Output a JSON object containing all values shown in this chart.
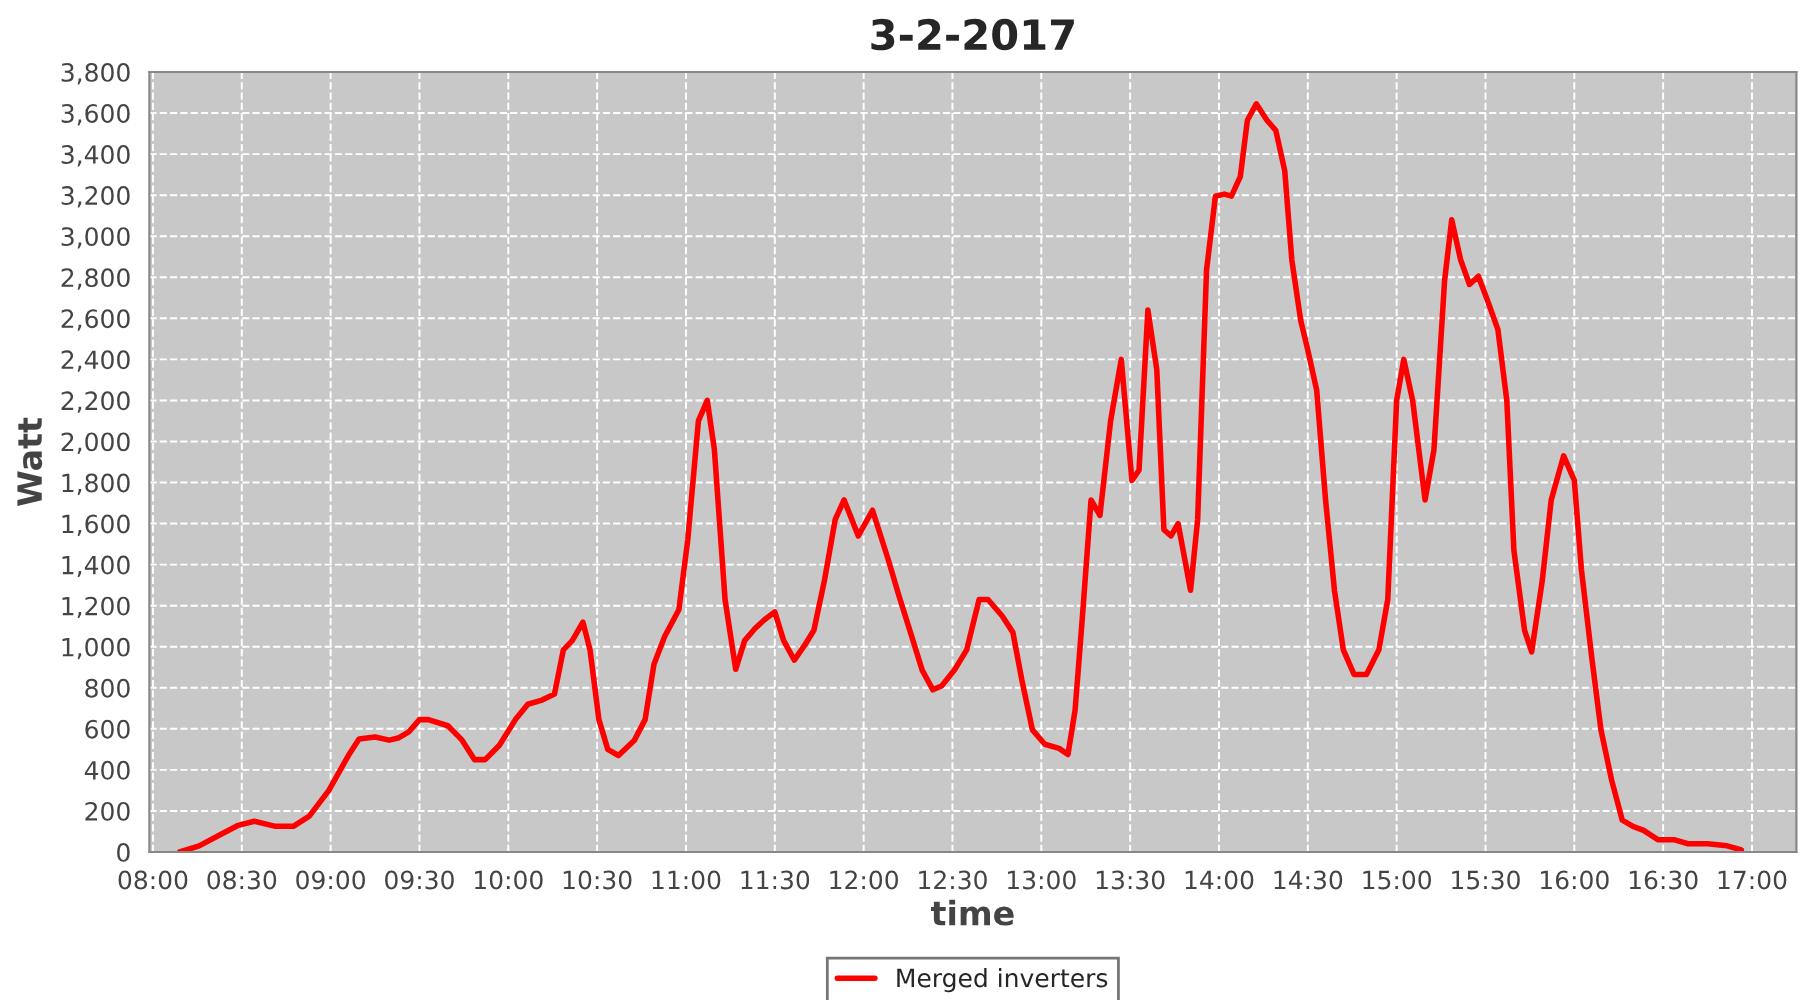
{
  "chart_data": {
    "type": "line",
    "title": "3-2-2017",
    "xlabel": "time",
    "ylabel": "Watt",
    "x": [
      8.15,
      8.26,
      8.37,
      8.48,
      8.57,
      8.69,
      8.79,
      8.88,
      8.99,
      9.1,
      9.16,
      9.25,
      9.33,
      9.38,
      9.44,
      9.5,
      9.55,
      9.66,
      9.74,
      9.81,
      9.87,
      9.95,
      10.04,
      10.11,
      10.19,
      10.26,
      10.31,
      10.36,
      10.42,
      10.46,
      10.51,
      10.56,
      10.62,
      10.71,
      10.77,
      10.82,
      10.88,
      10.96,
      11.01,
      11.07,
      11.12,
      11.16,
      11.22,
      11.28,
      11.33,
      11.39,
      11.44,
      11.5,
      11.55,
      11.61,
      11.67,
      11.72,
      11.78,
      11.84,
      11.89,
      11.97,
      12.05,
      12.14,
      12.2,
      12.26,
      12.33,
      12.39,
      12.44,
      12.51,
      12.58,
      12.65,
      12.7,
      12.78,
      12.84,
      12.89,
      12.95,
      13.02,
      13.1,
      13.15,
      13.19,
      13.23,
      13.28,
      13.33,
      13.39,
      13.45,
      13.51,
      13.55,
      13.6,
      13.65,
      13.69,
      13.73,
      13.77,
      13.84,
      13.88,
      13.93,
      13.98,
      14.03,
      14.07,
      14.12,
      14.16,
      14.21,
      14.27,
      14.32,
      14.37,
      14.41,
      14.46,
      14.5,
      14.55,
      14.6,
      14.65,
      14.7,
      14.76,
      14.83,
      14.9,
      14.95,
      15.0,
      15.04,
      15.09,
      15.16,
      15.21,
      15.27,
      15.31,
      15.36,
      15.41,
      15.46,
      15.51,
      15.57,
      15.62,
      15.66,
      15.72,
      15.76,
      15.82,
      15.87,
      15.94,
      16.0,
      16.04,
      16.1,
      16.15,
      16.21,
      16.27,
      16.33,
      16.39,
      16.47,
      16.56,
      16.64,
      16.75,
      16.86,
      16.94
    ],
    "series": [
      {
        "name": "Merged inverters",
        "color": "#ff0000",
        "values": [
          0,
          30,
          80,
          130,
          150,
          125,
          125,
          175,
          300,
          470,
          550,
          560,
          545,
          555,
          585,
          645,
          645,
          615,
          545,
          450,
          450,
          520,
          645,
          720,
          740,
          770,
          985,
          1030,
          1120,
          985,
          645,
          500,
          470,
          545,
          645,
          915,
          1050,
          1180,
          1520,
          2100,
          2200,
          1960,
          1230,
          890,
          1030,
          1090,
          1130,
          1170,
          1030,
          935,
          1010,
          1080,
          1325,
          1620,
          1715,
          1540,
          1665,
          1420,
          1245,
          1080,
          885,
          790,
          810,
          885,
          985,
          1230,
          1230,
          1150,
          1070,
          840,
          595,
          525,
          505,
          475,
          690,
          1130,
          1715,
          1640,
          2100,
          2400,
          1810,
          1860,
          2640,
          2350,
          1570,
          1540,
          1600,
          1275,
          1620,
          2835,
          3195,
          3205,
          3195,
          3290,
          3565,
          3645,
          3565,
          3515,
          3320,
          2885,
          2590,
          2445,
          2250,
          1715,
          1275,
          985,
          865,
          865,
          985,
          1230,
          2200,
          2400,
          2200,
          1715,
          1960,
          2785,
          3080,
          2885,
          2765,
          2805,
          2690,
          2545,
          2200,
          1470,
          1080,
          975,
          1325,
          1715,
          1930,
          1810,
          1375,
          935,
          595,
          350,
          155,
          125,
          105,
          60,
          60,
          40,
          40,
          30,
          10
        ]
      }
    ],
    "xlim": [
      7.98,
      17.25
    ],
    "xticks": [
      {
        "value": 8,
        "label": "08:00"
      },
      {
        "value": 8.5,
        "label": "08:30"
      },
      {
        "value": 9,
        "label": "09:00"
      },
      {
        "value": 9.5,
        "label": "09:30"
      },
      {
        "value": 10,
        "label": "10:00"
      },
      {
        "value": 10.5,
        "label": "10:30"
      },
      {
        "value": 11,
        "label": "11:00"
      },
      {
        "value": 11.5,
        "label": "11:30"
      },
      {
        "value": 12,
        "label": "12:00"
      },
      {
        "value": 12.5,
        "label": "12:30"
      },
      {
        "value": 13,
        "label": "13:00"
      },
      {
        "value": 13.5,
        "label": "13:30"
      },
      {
        "value": 14,
        "label": "14:00"
      },
      {
        "value": 14.5,
        "label": "14:30"
      },
      {
        "value": 15,
        "label": "15:00"
      },
      {
        "value": 15.5,
        "label": "15:30"
      },
      {
        "value": 16,
        "label": "16:00"
      },
      {
        "value": 16.5,
        "label": "16:30"
      },
      {
        "value": 17,
        "label": "17:00"
      }
    ],
    "ylim": [
      0,
      3800
    ],
    "yticks": [
      0,
      200,
      400,
      600,
      800,
      {
        "value": 1000,
        "label": "1,000"
      },
      {
        "value": 1200,
        "label": "1,200"
      },
      {
        "value": 1400,
        "label": "1,400"
      },
      {
        "value": 1600,
        "label": "1,600"
      },
      {
        "value": 1800,
        "label": "1,800"
      },
      {
        "value": 2000,
        "label": "2,000"
      },
      {
        "value": 2200,
        "label": "2,200"
      },
      {
        "value": 2400,
        "label": "2,400"
      },
      {
        "value": 2600,
        "label": "2,600"
      },
      {
        "value": 2800,
        "label": "2,800"
      },
      {
        "value": 3000,
        "label": "3,000"
      },
      {
        "value": 3200,
        "label": "3,200"
      },
      {
        "value": 3400,
        "label": "3,400"
      },
      {
        "value": 3600,
        "label": "3,600"
      },
      {
        "value": 3800,
        "label": "3,800"
      }
    ],
    "grid": true,
    "legend": "bottom",
    "line_style": "solid"
  }
}
